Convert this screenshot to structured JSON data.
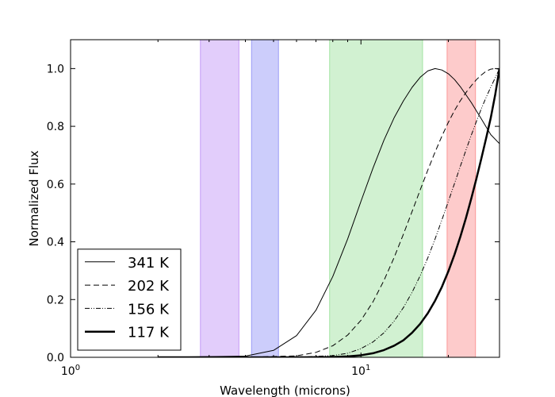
{
  "chart_data": {
    "type": "line",
    "title": "",
    "xlabel": "Wavelength (microns)",
    "ylabel": "Normalized Flux",
    "xscale": "log",
    "xlim": [
      1,
      30
    ],
    "ylim": [
      0,
      1.1
    ],
    "xticks": [
      {
        "value": 1,
        "label": "10",
        "sup": "0"
      },
      {
        "value": 10,
        "label": "10",
        "sup": "1"
      }
    ],
    "yticks": [
      0.0,
      0.2,
      0.4,
      0.6,
      0.8,
      1.0
    ],
    "yticklabels": [
      "0.0",
      "0.2",
      "0.4",
      "0.6",
      "0.8",
      "1.0"
    ],
    "bands": [
      {
        "name": "band-purple",
        "x0": 2.8,
        "x1": 3.8,
        "color": "#c59bf7"
      },
      {
        "name": "band-blue",
        "x0": 4.2,
        "x1": 5.2,
        "color": "#9a9cf7"
      },
      {
        "name": "band-green",
        "x0": 7.8,
        "x1": 16.3,
        "color": "#a4e3a4"
      },
      {
        "name": "band-red",
        "x0": 19.8,
        "x1": 24.8,
        "color": "#fb9898"
      }
    ],
    "series": [
      {
        "name": "341 K",
        "temperature": 341,
        "style": "solid",
        "width": 1,
        "x": [
          2.0,
          4.0,
          5.0,
          6.0,
          7.0,
          8.0,
          9.0,
          10.0,
          11.0,
          12.0,
          13.0,
          14.0,
          15.0,
          16.0,
          17.0,
          18.0,
          19.0,
          20.0,
          21.0,
          22.0,
          24.0,
          26.0,
          28.0,
          30.0
        ],
        "y": [
          0.0,
          0.004,
          0.024,
          0.075,
          0.163,
          0.28,
          0.41,
          0.54,
          0.655,
          0.752,
          0.829,
          0.888,
          0.935,
          0.97,
          0.992,
          1.0,
          0.995,
          0.982,
          0.962,
          0.937,
          0.882,
          0.825,
          0.771,
          0.74
        ]
      },
      {
        "name": "202 K",
        "temperature": 202,
        "style": "dashed",
        "width": 1,
        "x": [
          4.0,
          6.0,
          7.0,
          8.0,
          9.0,
          10.0,
          11.0,
          12.0,
          13.0,
          14.0,
          15.0,
          16.0,
          17.0,
          18.0,
          19.0,
          20.0,
          21.0,
          22.0,
          23.0,
          24.0,
          25.0,
          26.0,
          27.0,
          28.0,
          29.0,
          30.0
        ],
        "y": [
          0.0,
          0.005,
          0.017,
          0.04,
          0.077,
          0.128,
          0.192,
          0.266,
          0.345,
          0.426,
          0.505,
          0.58,
          0.649,
          0.711,
          0.766,
          0.814,
          0.855,
          0.889,
          0.917,
          0.941,
          0.962,
          0.978,
          0.991,
          0.998,
          1.0,
          0.998
        ]
      },
      {
        "name": "156 K",
        "temperature": 156,
        "style": "dashdot",
        "width": 1,
        "x": [
          6.0,
          8.0,
          9.0,
          10.0,
          11.0,
          12.0,
          13.0,
          14.0,
          15.0,
          16.0,
          17.0,
          18.0,
          19.0,
          20.0,
          21.0,
          22.0,
          23.0,
          24.0,
          25.0,
          26.0,
          27.0,
          28.0,
          29.0,
          30.0
        ],
        "y": [
          0.0,
          0.006,
          0.014,
          0.03,
          0.053,
          0.085,
          0.125,
          0.172,
          0.225,
          0.283,
          0.345,
          0.41,
          0.476,
          0.54,
          0.602,
          0.662,
          0.718,
          0.77,
          0.818,
          0.862,
          0.901,
          0.936,
          0.968,
          1.0
        ]
      },
      {
        "name": "117 K",
        "temperature": 117,
        "style": "solid",
        "width": 2.5,
        "x": [
          2.0,
          6.0,
          8.0,
          9.0,
          10.0,
          11.0,
          12.0,
          13.0,
          14.0,
          15.0,
          16.0,
          17.0,
          18.0,
          19.0,
          20.0,
          21.0,
          22.0,
          23.0,
          24.0,
          25.0,
          26.0,
          27.0,
          28.0,
          29.0,
          30.0
        ],
        "y": [
          0.0,
          0.0,
          0.001,
          0.003,
          0.007,
          0.014,
          0.025,
          0.04,
          0.059,
          0.085,
          0.116,
          0.153,
          0.196,
          0.244,
          0.298,
          0.356,
          0.418,
          0.483,
          0.551,
          0.62,
          0.69,
          0.76,
          0.83,
          0.91,
          1.0
        ]
      }
    ],
    "legend": {
      "position": "bottom-left"
    }
  }
}
